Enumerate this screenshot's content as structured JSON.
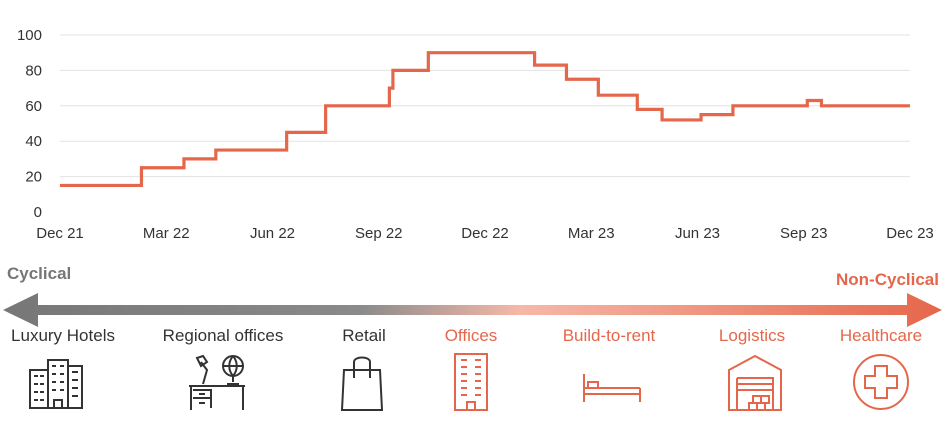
{
  "chart_data": {
    "type": "line",
    "title": "",
    "xlabel": "",
    "ylabel": "",
    "ylim": [
      0,
      100
    ],
    "yticks": [
      0,
      20,
      40,
      60,
      80,
      100
    ],
    "xlim": [
      0,
      24
    ],
    "xticks": [
      {
        "x": 0,
        "label": "Dec 21"
      },
      {
        "x": 3,
        "label": "Mar 22"
      },
      {
        "x": 6,
        "label": "Jun 22"
      },
      {
        "x": 9,
        "label": "Sep 22"
      },
      {
        "x": 12,
        "label": "Dec 22"
      },
      {
        "x": 15,
        "label": "Mar 23"
      },
      {
        "x": 18,
        "label": "Jun 23"
      },
      {
        "x": 21,
        "label": "Sep 23"
      },
      {
        "x": 24,
        "label": "Dec 23"
      }
    ],
    "grid": "horizontal",
    "series": [
      {
        "color": "#E5674B",
        "step": true,
        "points": [
          [
            0,
            15
          ],
          [
            2.3,
            25
          ],
          [
            3.5,
            30
          ],
          [
            4.4,
            35
          ],
          [
            6.4,
            45
          ],
          [
            7.5,
            60
          ],
          [
            9.3,
            70
          ],
          [
            9.4,
            80
          ],
          [
            10.4,
            90
          ],
          [
            13.4,
            83
          ],
          [
            14.3,
            75
          ],
          [
            15.2,
            66
          ],
          [
            16.3,
            58
          ],
          [
            17.0,
            52
          ],
          [
            18.1,
            55
          ],
          [
            19.0,
            60
          ],
          [
            21.1,
            63
          ],
          [
            21.5,
            60
          ],
          [
            24,
            60
          ]
        ]
      }
    ]
  },
  "spectrum": {
    "left_label": "Cyclical",
    "right_label": "Non-Cyclical",
    "left_color": "#777777",
    "right_color": "#E5674B",
    "categories": [
      {
        "label": "Luxury Hotels",
        "color": "#333333",
        "icon": "hotel-buildings-icon"
      },
      {
        "label": "Regional offices",
        "color": "#333333",
        "icon": "office-desk-icon"
      },
      {
        "label": "Retail",
        "color": "#333333",
        "icon": "shopping-bag-icon"
      },
      {
        "label": "Offices",
        "color": "#E5674B",
        "icon": "office-tower-icon"
      },
      {
        "label": "Build-to-rent",
        "color": "#E5674B",
        "icon": "bed-icon"
      },
      {
        "label": "Logistics",
        "color": "#E5674B",
        "icon": "warehouse-icon"
      },
      {
        "label": "Healthcare",
        "color": "#E5674B",
        "icon": "medical-cross-icon"
      }
    ]
  }
}
